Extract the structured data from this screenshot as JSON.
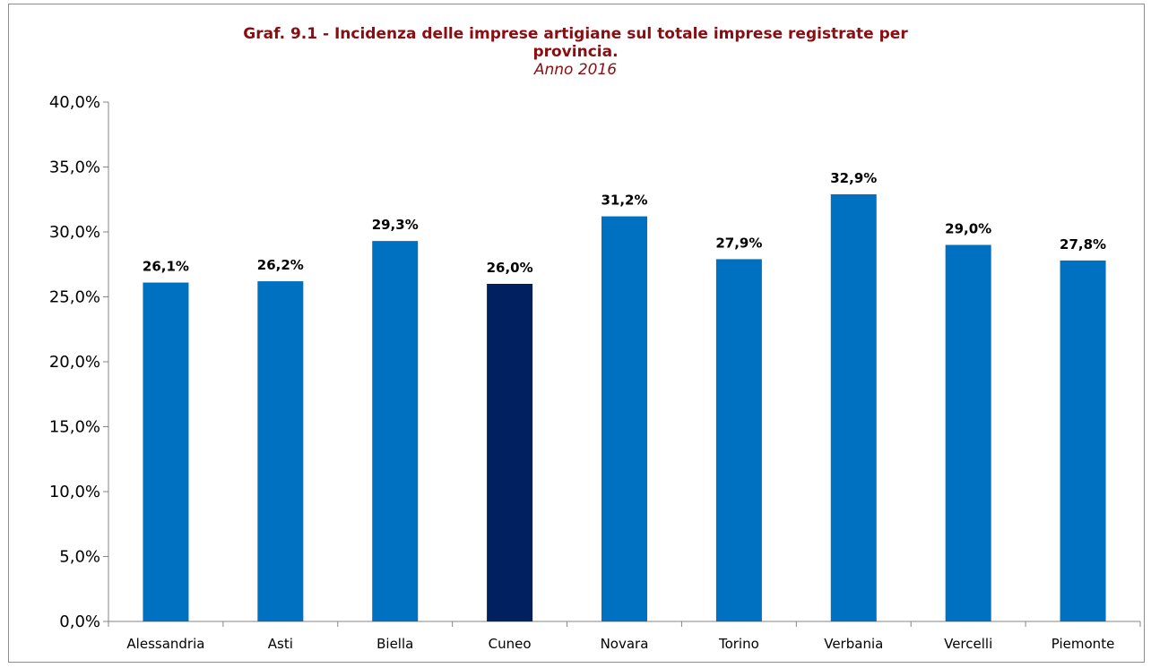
{
  "chart_data": {
    "type": "bar",
    "title": "Graf. 9.1 - Incidenza delle imprese artigiane sul totale imprese registrate per provincia.",
    "title_lines": [
      "Graf. 9.1 - Incidenza delle imprese artigiane sul totale imprese registrate per",
      "provincia."
    ],
    "subtitle": "Anno 2016",
    "xlabel": "",
    "ylabel": "",
    "categories": [
      "Alessandria",
      "Asti",
      "Biella",
      "Cuneo",
      "Novara",
      "Torino",
      "Verbania",
      "Vercelli",
      "Piemonte"
    ],
    "values": [
      26.1,
      26.2,
      29.3,
      26.0,
      31.2,
      27.9,
      32.9,
      29.0,
      27.8
    ],
    "data_labels": [
      "26,1%",
      "26,2%",
      "29,3%",
      "26,0%",
      "31,2%",
      "27,9%",
      "32,9%",
      "29,0%",
      "27,8%"
    ],
    "ylim": [
      0,
      40
    ],
    "yticks": [
      0,
      5,
      10,
      15,
      20,
      25,
      30,
      35,
      40
    ],
    "ytick_labels": [
      "0,0%",
      "5,0%",
      "10,0%",
      "15,0%",
      "20,0%",
      "25,0%",
      "30,0%",
      "35,0%",
      "40,0%"
    ],
    "grid": false,
    "legend": "none",
    "colors": {
      "default_bar": "#0070c0",
      "highlight_bar": "#002060",
      "title": "#8b0d12",
      "axis": "#868686"
    },
    "highlight_category": "Cuneo"
  }
}
